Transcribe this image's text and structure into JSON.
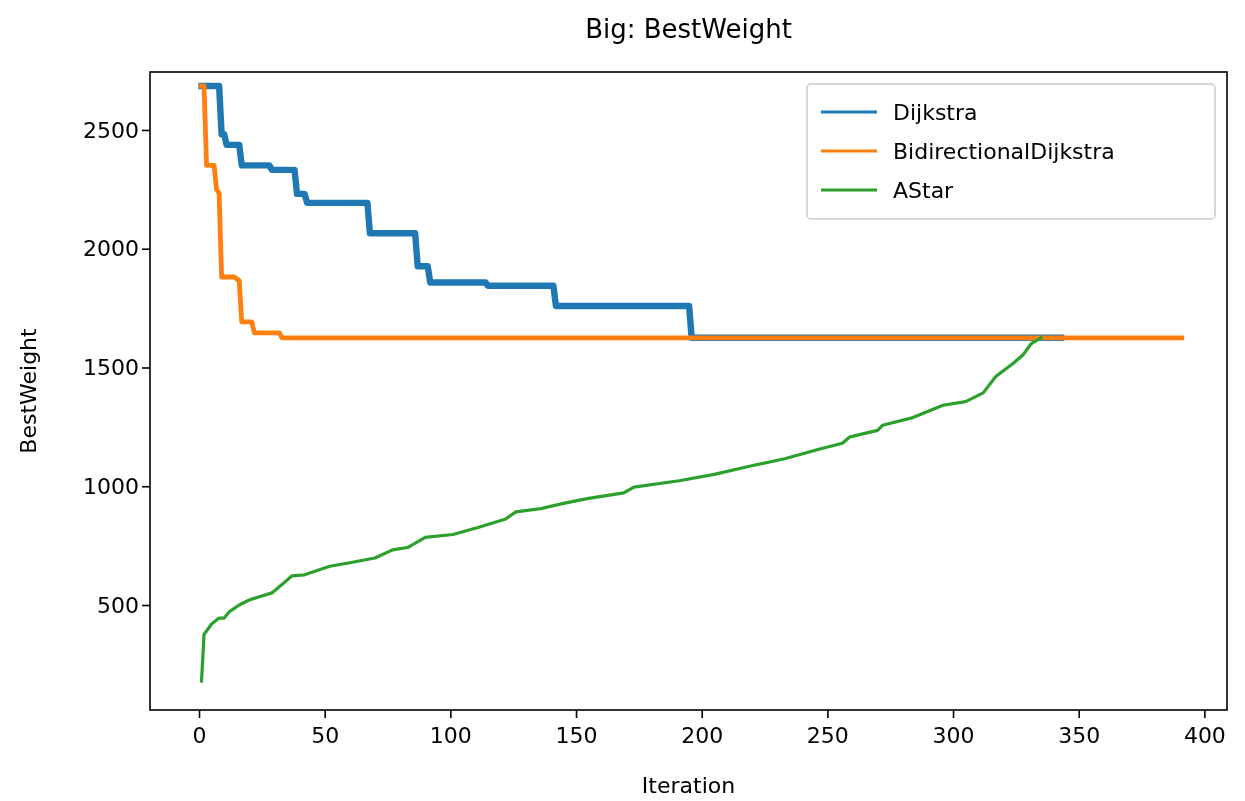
{
  "chart_data": {
    "type": "line",
    "title": "Big: BestWeight",
    "xlabel": "Iteration",
    "ylabel": "BestWeight",
    "xlim": [
      -19.5,
      409
    ],
    "ylim": [
      58,
      2744
    ],
    "xticks": [
      0,
      50,
      100,
      150,
      200,
      250,
      300,
      350,
      400
    ],
    "yticks": [
      500,
      1000,
      1500,
      2000,
      2500
    ],
    "grid": false,
    "legend": "top right",
    "line_style": "solid",
    "marker": "none",
    "series": [
      {
        "name": "Dijkstra",
        "color": "#1f77b4",
        "x": [
          1,
          8,
          9,
          10,
          11,
          16,
          17,
          28,
          29,
          38,
          39,
          42,
          43,
          67,
          68,
          86,
          87,
          91,
          92,
          114,
          115,
          141,
          142,
          195,
          196,
          343
        ],
        "values": [
          2685,
          2685,
          2482,
          2482,
          2437,
          2437,
          2351,
          2351,
          2332,
          2332,
          2231,
          2231,
          2193,
          2193,
          2065,
          2065,
          1926,
          1926,
          1858,
          1858,
          1844,
          1844,
          1759,
          1759,
          1625,
          1625
        ]
      },
      {
        "name": "BidirectionalDijkstra",
        "color": "#ff7f0e",
        "x": [
          1,
          2,
          3,
          6,
          7,
          8,
          9,
          14,
          16,
          17,
          21,
          22,
          32,
          33,
          391
        ],
        "values": [
          2685,
          2685,
          2351,
          2351,
          2249,
          2234,
          1881,
          1881,
          1865,
          1692,
          1692,
          1646,
          1646,
          1625,
          1625
        ]
      },
      {
        "name": "AStar",
        "color": "#2ca02c",
        "x": [
          1,
          2,
          5,
          8,
          10,
          12,
          16,
          20,
          24,
          29,
          33,
          37,
          42,
          52,
          60,
          70,
          77,
          83,
          90,
          101,
          111,
          122,
          126,
          136,
          145,
          155,
          169,
          173,
          191,
          205,
          219,
          233,
          247,
          256,
          259,
          270,
          272,
          284,
          296,
          305,
          312,
          317,
          324,
          328,
          331,
          335
        ],
        "values": [
          180,
          376,
          420,
          445,
          445,
          471,
          500,
          521,
          535,
          551,
          586,
          623,
          627,
          663,
          678,
          698,
          732,
          742,
          785,
          797,
          826,
          862,
          892,
          906,
          928,
          949,
          972,
          996,
          1023,
          1050,
          1084,
          1116,
          1157,
          1181,
          1208,
          1235,
          1257,
          1289,
          1341,
          1356,
          1393,
          1462,
          1518,
          1555,
          1599,
          1625
        ]
      }
    ]
  }
}
